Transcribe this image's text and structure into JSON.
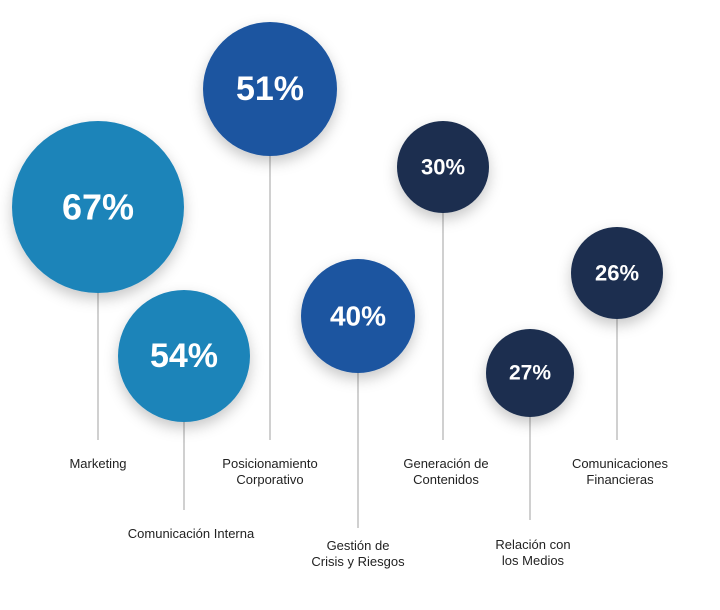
{
  "chart_data": {
    "type": "bubble",
    "series": [
      {
        "label": "Marketing",
        "value": 67,
        "display": "67%",
        "color": "#1e84b9"
      },
      {
        "label": "Comunicación Interna",
        "value": 54,
        "display": "54%",
        "color": "#1e84b9"
      },
      {
        "label": "Posicionamiento Corporativo",
        "value": 51,
        "display": "51%",
        "color": "#1c55a0"
      },
      {
        "label": "Gestión de Crisis y Riesgos",
        "value": 40,
        "display": "40%",
        "color": "#1c55a0"
      },
      {
        "label": "Generación de Contenidos",
        "value": 30,
        "display": "30%",
        "color": "#1b2f4f"
      },
      {
        "label": "Relación con los Medios",
        "value": 27,
        "display": "27%",
        "color": "#1b2f4f"
      },
      {
        "label": "Comunicaciones Financieras",
        "value": 26,
        "display": "26%",
        "color": "#1b2f4f"
      }
    ],
    "label_lines": [
      [
        "Marketing"
      ],
      [
        "Comunicación Interna"
      ],
      [
        "Posicionamiento",
        "Corporativo"
      ],
      [
        "Gestión de",
        "Crisis y Riesgos"
      ],
      [
        "Generación de",
        "Contenidos"
      ],
      [
        "Relación con",
        "los Medios"
      ],
      [
        "Comunicaciones",
        "Financieras"
      ]
    ]
  }
}
